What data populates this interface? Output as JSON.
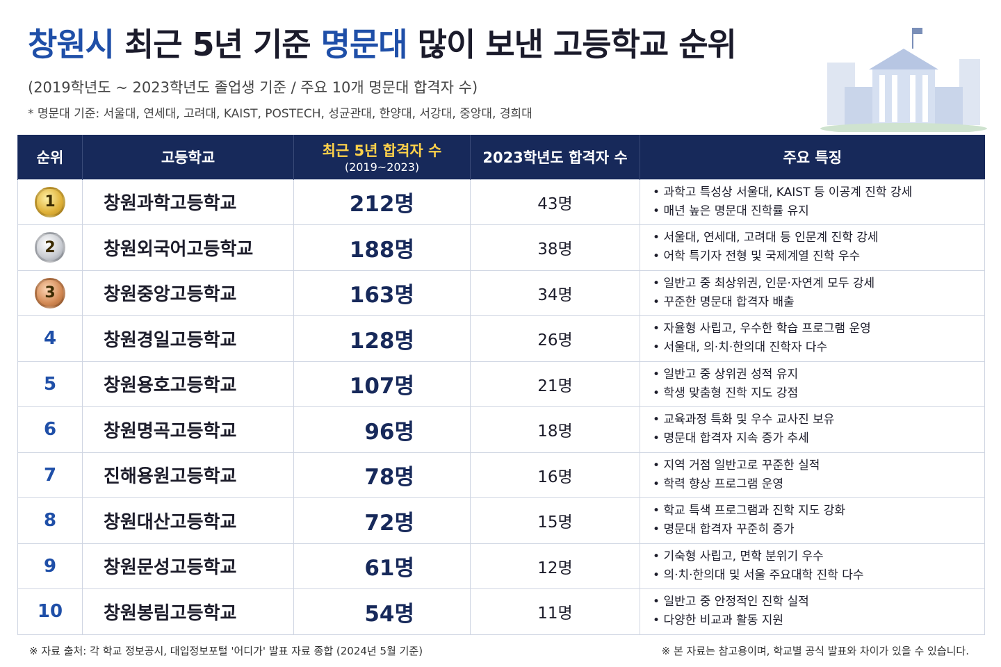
{
  "header": {
    "title_parts": [
      {
        "text": "창원시",
        "highlight": true
      },
      {
        "text": " 최근 5년 기준 ",
        "highlight": false
      },
      {
        "text": "명문대",
        "highlight": true
      },
      {
        "text": " 많이 보낸 고등학교 순위",
        "highlight": false
      }
    ],
    "subtitle": "(2019학년도 ~ 2023학년도 졸업생 기준 / 주요 10개 명문대 합격자 수)",
    "note": "* 명문대 기준: 서울대, 연세대, 고려대, KAIST, POSTECH, 성균관대, 한양대, 서강대, 중앙대, 경희대"
  },
  "table": {
    "columns": [
      "순위",
      "고등학교",
      [
        "최근 5년 합격자 수",
        "(2019~2023)"
      ],
      "2023학년도 합격자 수",
      "주요 특징"
    ],
    "rows": [
      {
        "rank": 1,
        "school": "창원과학고등학교",
        "total": "212명",
        "recent": "43명",
        "features": [
          "과학고 특성상 서울대, KAIST 등 이공계 진학 강세",
          "매년 높은 명문대 진학률 유지"
        ]
      },
      {
        "rank": 2,
        "school": "창원외국어고등학교",
        "total": "188명",
        "recent": "38명",
        "features": [
          "서울대, 연세대, 고려대 등 인문계 진학 강세",
          "어학 특기자 전형 및 국제계열 진학 우수"
        ]
      },
      {
        "rank": 3,
        "school": "창원중앙고등학교",
        "total": "163명",
        "recent": "34명",
        "features": [
          "일반고 중 최상위권, 인문·자연계 모두 강세",
          "꾸준한 명문대 합격자 배출"
        ]
      },
      {
        "rank": 4,
        "school": "창원경일고등학교",
        "total": "128명",
        "recent": "26명",
        "features": [
          "자율형 사립고, 우수한 학습 프로그램 운영",
          "서울대, 의·치·한의대 진학자 다수"
        ]
      },
      {
        "rank": 5,
        "school": "창원용호고등학교",
        "total": "107명",
        "recent": "21명",
        "features": [
          "일반고 중 상위권 성적 유지",
          "학생 맞춤형 진학 지도 강점"
        ]
      },
      {
        "rank": 6,
        "school": "창원명곡고등학교",
        "total": "96명",
        "recent": "18명",
        "features": [
          "교육과정 특화 및 우수 교사진 보유",
          "명문대 합격자 지속 증가 추세"
        ]
      },
      {
        "rank": 7,
        "school": "진해용원고등학교",
        "total": "78명",
        "recent": "16명",
        "features": [
          "지역 거점 일반고로 꾸준한 실적",
          "학력 향상 프로그램 운영"
        ]
      },
      {
        "rank": 8,
        "school": "창원대산고등학교",
        "total": "72명",
        "recent": "15명",
        "features": [
          "학교 특색 프로그램과 진학 지도 강화",
          "명문대 합격자 꾸준히 증가"
        ]
      },
      {
        "rank": 9,
        "school": "창원문성고등학교",
        "total": "61명",
        "recent": "12명",
        "features": [
          "기숙형 사립고, 면학 분위기 우수",
          "의·치·한의대 및 서울 주요대학 진학 다수"
        ]
      },
      {
        "rank": 10,
        "school": "창원봉림고등학교",
        "total": "54명",
        "recent": "11명",
        "features": [
          "일반고 중 안정적인 진학 실적",
          "다양한 비교과 활동 지원"
        ]
      }
    ]
  },
  "footer": {
    "source": "※ 자료 출처: 각 학교 정보공시, 대입정보포털 '어디가' 발표 자료 종합 (2024년 5월 기준)",
    "disclaimer": "※ 본 자료는 참고용이며, 학교별 공식 발표와 차이가 있을 수 있습니다."
  }
}
